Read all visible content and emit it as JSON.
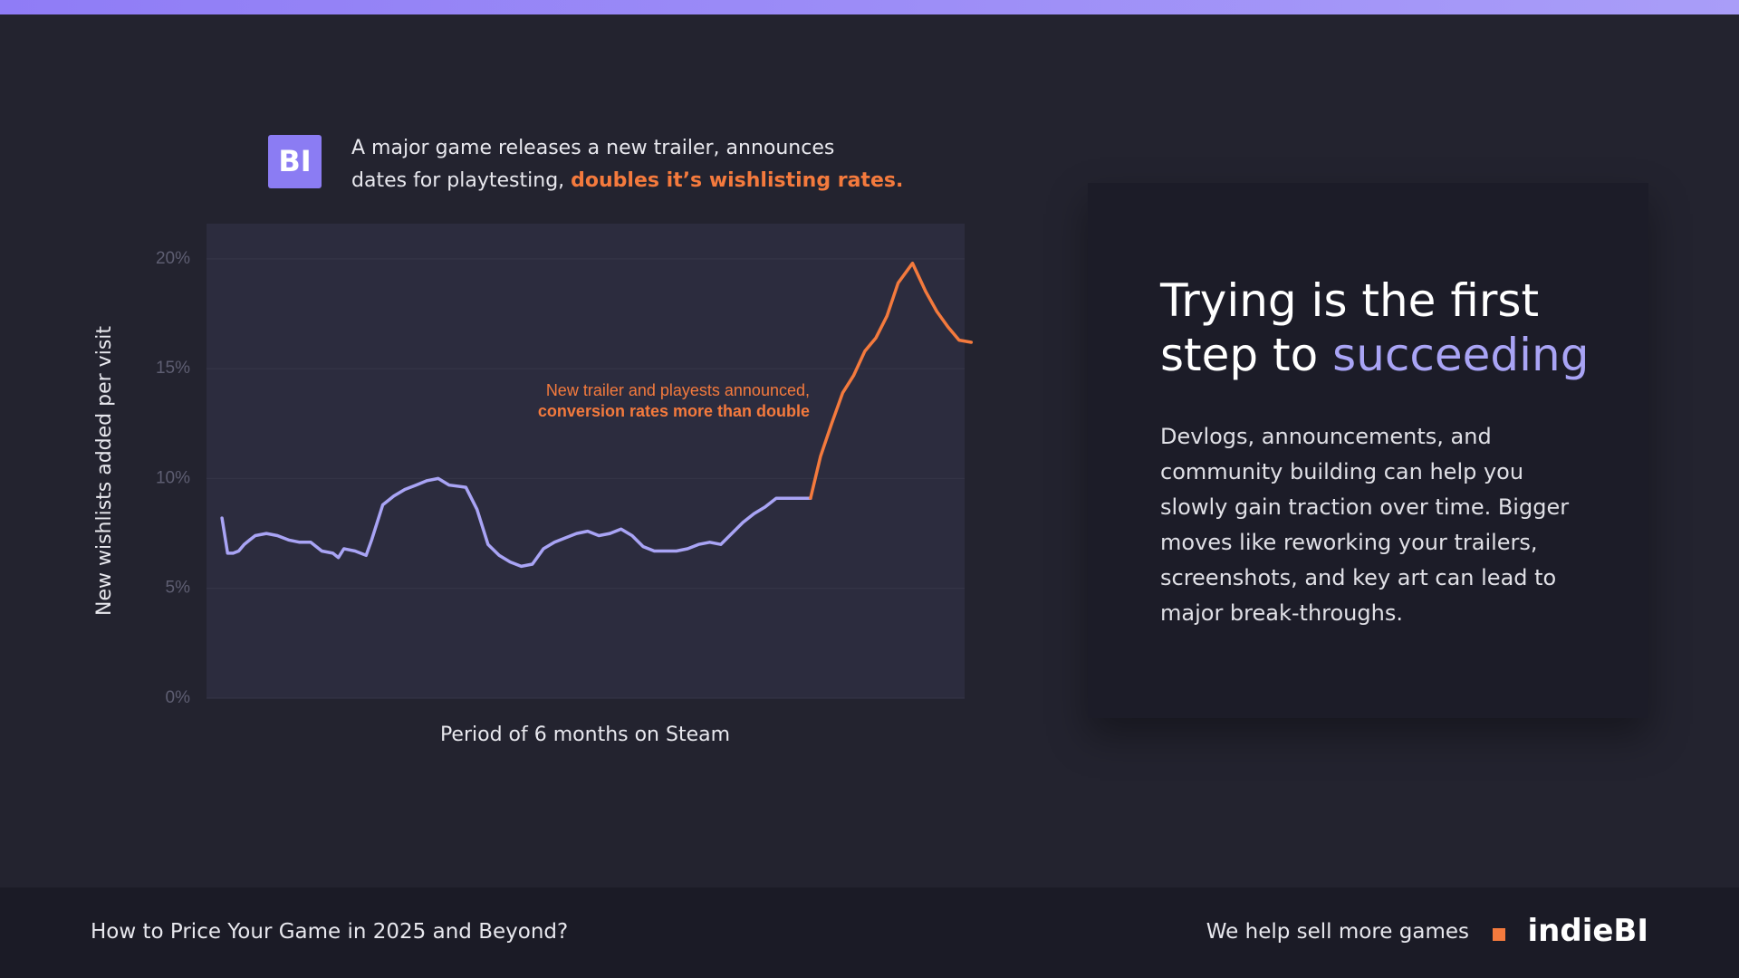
{
  "header": {
    "logo": "BI",
    "line1": "A major game releases a new trailer, announces",
    "line2": "dates for playtesting,",
    "highlight": "doubles it’s wishlisting rates."
  },
  "chart_data": {
    "type": "line",
    "y_label": "New wishlists added per visit",
    "x_label": "Period of 6 months on Steam",
    "annotation": {
      "line1": "New trailer and playests announced,",
      "line2": "conversion rates more than double"
    },
    "xlim": [
      0,
      684
    ],
    "ylim": [
      0,
      21.6
    ],
    "yticks": [
      {
        "value": 0,
        "label": "0%"
      },
      {
        "value": 5,
        "label": "5%"
      },
      {
        "value": 10,
        "label": "10%"
      },
      {
        "value": 15,
        "label": "15%"
      },
      {
        "value": 20,
        "label": "20%"
      }
    ],
    "grid": true,
    "series": [
      {
        "color": "#a9a4f5",
        "x": [
          14,
          19,
          24,
          29,
          34,
          39,
          44,
          54,
          64,
          74,
          84,
          94,
          104,
          114,
          119,
          124,
          134,
          144,
          149,
          159,
          169,
          179,
          189,
          199,
          209,
          219,
          234,
          244,
          254,
          264,
          274,
          284,
          294,
          304,
          314,
          324,
          334,
          344,
          354,
          364,
          374,
          384,
          394,
          404,
          414,
          424,
          434,
          444,
          454,
          464,
          474,
          484,
          494,
          504,
          514,
          524,
          534,
          545
        ],
        "values": [
          8.2,
          6.6,
          6.6,
          6.7,
          7.0,
          7.2,
          7.4,
          7.5,
          7.4,
          7.2,
          7.1,
          7.1,
          6.7,
          6.6,
          6.4,
          6.8,
          6.7,
          6.5,
          7.2,
          8.8,
          9.2,
          9.5,
          9.7,
          9.9,
          10.0,
          9.7,
          9.6,
          8.6,
          7.0,
          6.5,
          6.2,
          6.0,
          6.1,
          6.8,
          7.1,
          7.3,
          7.5,
          7.6,
          7.4,
          7.5,
          7.7,
          7.4,
          6.9,
          6.7,
          6.7,
          6.7,
          6.8,
          7.0,
          7.1,
          7.0,
          7.5,
          8.0,
          8.4,
          8.7,
          9.1,
          9.1,
          9.1,
          9.1
        ]
      },
      {
        "color": "#f47a3d",
        "x": [
          545,
          554,
          564,
          574,
          584,
          594,
          604,
          614,
          624,
          637,
          649,
          659,
          669,
          679,
          690
        ],
        "values": [
          9.1,
          11.0,
          12.5,
          13.9,
          14.7,
          15.8,
          16.4,
          17.4,
          18.9,
          19.8,
          18.5,
          17.6,
          16.9,
          16.3,
          16.2
        ]
      }
    ]
  },
  "card": {
    "line1": "Trying is the first",
    "line2": "step to",
    "highlight": "succeeding",
    "body": [
      "Devlogs, announcements, and",
      "community building can help you",
      "slowly gain traction over time. Bigger",
      "moves like reworking your trailers,",
      "screenshots, and key art can lead to",
      "major break-throughs."
    ]
  },
  "footer": {
    "title": "How to Price Your Game in 2025 and Beyond?",
    "tagline": "We help sell more games",
    "brand": "indieBI"
  }
}
